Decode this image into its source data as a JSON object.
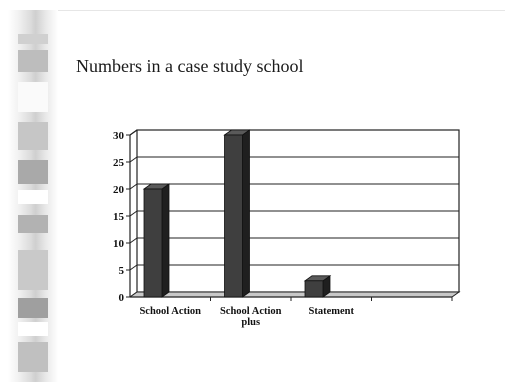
{
  "slide": {
    "title": "Numbers in a case study school"
  },
  "chart_data": {
    "type": "bar",
    "categories": [
      [
        "School Action"
      ],
      [
        "School Action",
        "plus"
      ],
      [
        "Statement"
      ],
      []
    ],
    "values": [
      20,
      30,
      3,
      null
    ],
    "yticks": [
      0,
      5,
      10,
      15,
      20,
      25,
      30
    ],
    "ylim": [
      0,
      30
    ],
    "grid": true,
    "legend": "none",
    "style": "3d",
    "colors": {
      "bar": "#3f3f3f",
      "bar_side": "#1f1f1f",
      "bar_top": "#5a5a5a"
    }
  }
}
